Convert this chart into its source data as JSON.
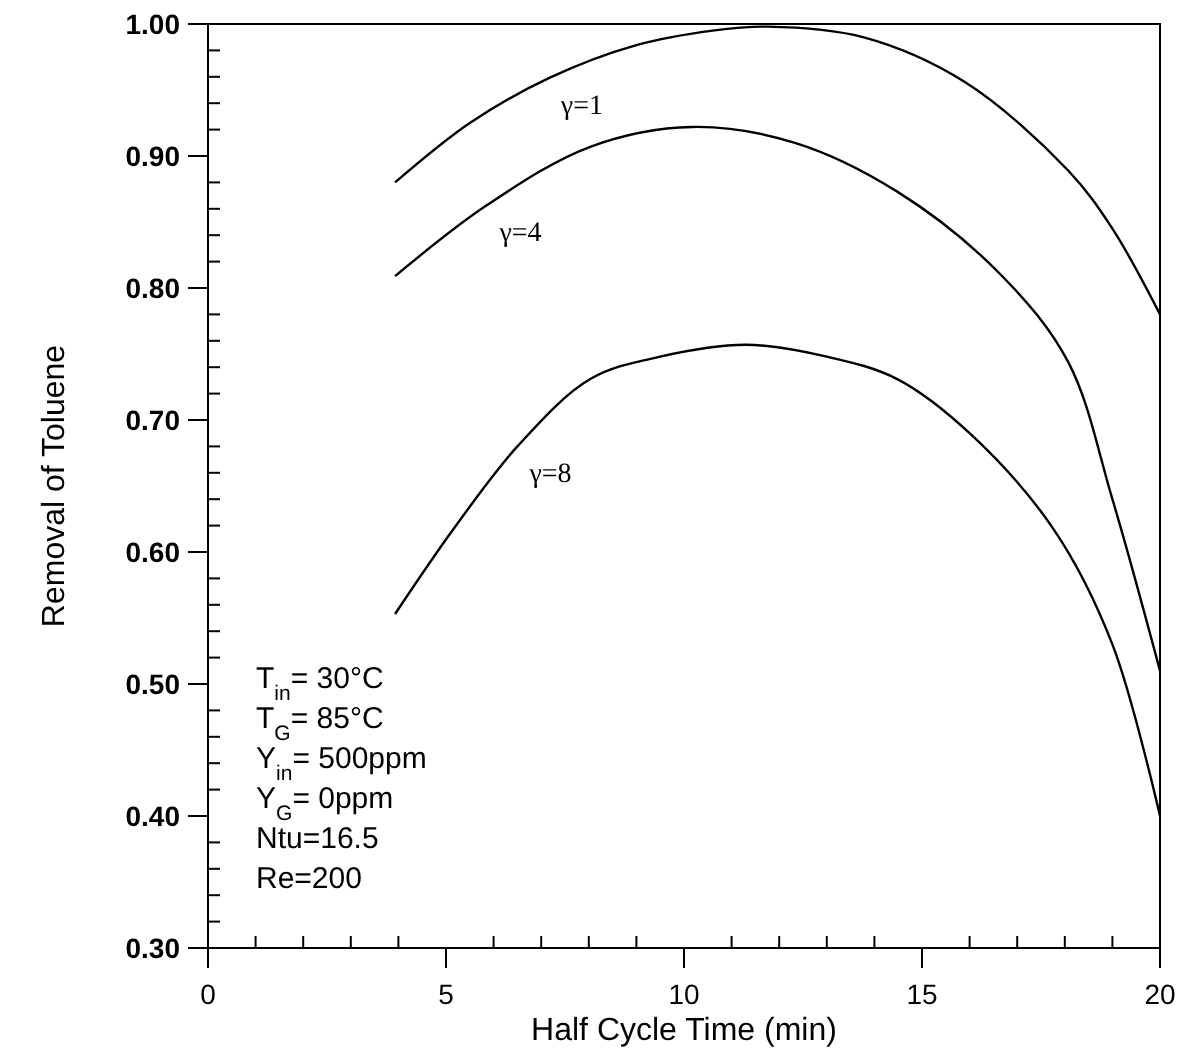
{
  "chart_data": {
    "type": "line",
    "xlabel": "Half Cycle Time (min)",
    "ylabel": "Removal of Toluene",
    "xlim": [
      0,
      20
    ],
    "ylim": [
      0.3,
      1.0
    ],
    "xticks": [
      0,
      {
        "value": 1,
        "label": null
      },
      {
        "value": 2,
        "label": null
      },
      {
        "value": 3,
        "label": null
      },
      {
        "value": 4,
        "label": null
      },
      5,
      {
        "value": 6,
        "label": null
      },
      {
        "value": 7,
        "label": null
      },
      {
        "value": 8,
        "label": null
      },
      {
        "value": 9,
        "label": null
      },
      10,
      {
        "value": 11,
        "label": null
      },
      {
        "value": 12,
        "label": null
      },
      {
        "value": 13,
        "label": null
      },
      {
        "value": 14,
        "label": null
      },
      15,
      {
        "value": 16,
        "label": null
      },
      {
        "value": 17,
        "label": null
      },
      {
        "value": 18,
        "label": null
      },
      {
        "value": 19,
        "label": null
      },
      20
    ],
    "yticks": [
      {
        "value": 0.3,
        "label": "0.30"
      },
      {
        "value": 0.32,
        "label": null
      },
      {
        "value": 0.34,
        "label": null
      },
      {
        "value": 0.36,
        "label": null
      },
      {
        "value": 0.38,
        "label": null
      },
      {
        "value": 0.4,
        "label": "0.40"
      },
      {
        "value": 0.42,
        "label": null
      },
      {
        "value": 0.44,
        "label": null
      },
      {
        "value": 0.46,
        "label": null
      },
      {
        "value": 0.48,
        "label": null
      },
      {
        "value": 0.5,
        "label": "0.50"
      },
      {
        "value": 0.52,
        "label": null
      },
      {
        "value": 0.54,
        "label": null
      },
      {
        "value": 0.56,
        "label": null
      },
      {
        "value": 0.58,
        "label": null
      },
      {
        "value": 0.6,
        "label": "0.60"
      },
      {
        "value": 0.62,
        "label": null
      },
      {
        "value": 0.64,
        "label": null
      },
      {
        "value": 0.66,
        "label": null
      },
      {
        "value": 0.68,
        "label": null
      },
      {
        "value": 0.7,
        "label": "0.70"
      },
      {
        "value": 0.72,
        "label": null
      },
      {
        "value": 0.74,
        "label": null
      },
      {
        "value": 0.76,
        "label": null
      },
      {
        "value": 0.78,
        "label": null
      },
      {
        "value": 0.8,
        "label": "0.80"
      },
      {
        "value": 0.82,
        "label": null
      },
      {
        "value": 0.84,
        "label": null
      },
      {
        "value": 0.86,
        "label": null
      },
      {
        "value": 0.88,
        "label": null
      },
      {
        "value": 0.9,
        "label": "0.90"
      },
      {
        "value": 0.92,
        "label": null
      },
      {
        "value": 0.94,
        "label": null
      },
      {
        "value": 0.96,
        "label": null
      },
      {
        "value": 0.98,
        "label": null
      },
      {
        "value": 1.0,
        "label": "1.00"
      }
    ],
    "grid": false,
    "marker": "none",
    "line_style": "solid",
    "annotations": [
      "T$_{in}$= 30°C",
      "T$_{G}$= 85°C",
      "Y$_{in}$= 500ppm",
      "Y$_{G}$= 0ppm",
      "Ntu=16.5",
      "Re=200"
    ],
    "series": [
      {
        "name": "γ=1",
        "color": "#000000",
        "x": [
          3.93,
          5.5,
          7.16,
          9,
          10.6,
          11.75,
          13.76,
          15.9,
          18.07,
          19,
          20
        ],
        "values": [
          0.88,
          0.925,
          0.959,
          0.984,
          0.995,
          0.998,
          0.99,
          0.956,
          0.889,
          0.845,
          0.78
        ]
      },
      {
        "name": "γ=4",
        "color": "#000000",
        "x": [
          3.93,
          5.87,
          8.03,
          10.17,
          12.33,
          14.48,
          16.63,
          18.07,
          19,
          20
        ],
        "values": [
          0.809,
          0.863,
          0.907,
          0.922,
          0.91,
          0.873,
          0.811,
          0.744,
          0.64,
          0.51
        ]
      },
      {
        "name": "γ=8",
        "color": "#000000",
        "x": [
          3.93,
          5.15,
          6.5,
          8.03,
          9.5,
          11.3,
          13,
          14.48,
          16,
          17.77,
          19,
          20
        ],
        "values": [
          0.553,
          0.617,
          0.68,
          0.731,
          0.748,
          0.757,
          0.748,
          0.731,
          0.69,
          0.617,
          0.53,
          0.4
        ]
      }
    ]
  }
}
